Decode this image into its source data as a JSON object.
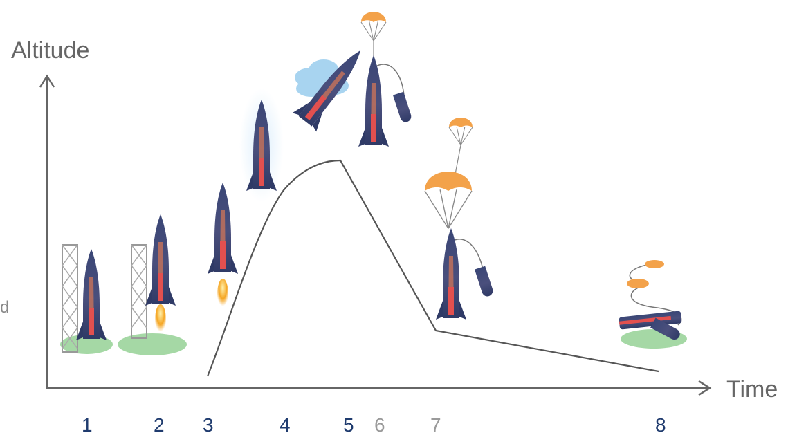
{
  "axes": {
    "y_label": "Altitude",
    "x_label": "Time"
  },
  "side_label": "d",
  "stages": [
    {
      "label": "1",
      "color": "#1f3b6e"
    },
    {
      "label": "2",
      "color": "#1f3b6e"
    },
    {
      "label": "3",
      "color": "#1f3b6e"
    },
    {
      "label": "4",
      "color": "#1f3b6e"
    },
    {
      "label": "5",
      "color": "#1f3b6e"
    },
    {
      "label": "6",
      "color": "#9a9a9a"
    },
    {
      "label": "7",
      "color": "#9a9a9a"
    },
    {
      "label": "8",
      "color": "#1f3b6e"
    }
  ],
  "colors": {
    "rocket_body": "#3d4a7a",
    "rocket_stripe": "#e2504f",
    "rocket_glow": "#e08a4a",
    "parachute": "#f3a24a",
    "launch_pad": "#7fc87f",
    "cloud": "#a8d4f0",
    "flame": "#f5a623",
    "axis": "#666666",
    "trajectory": "#555555"
  },
  "icons": [
    "launch-tower-icon",
    "rocket-icon",
    "parachute-icon",
    "cloud-icon",
    "flame-icon",
    "landing-pad-icon"
  ]
}
